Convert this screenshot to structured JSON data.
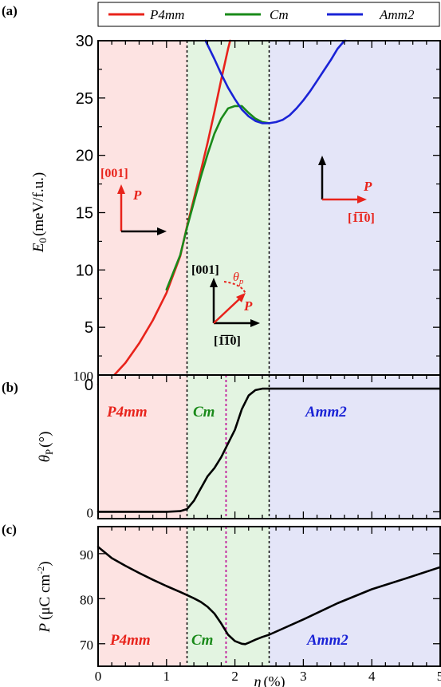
{
  "chart_data": [
    {
      "panel": "(a)",
      "type": "line",
      "ylabel_sym": "E",
      "ylabel_sub": "0",
      "ylabel_unit": "(meV/f.u.)",
      "xlim": [
        0,
        5
      ],
      "ylim": [
        0,
        30
      ],
      "yticks": [
        "0",
        "5",
        "10",
        "15",
        "20",
        "25",
        "30"
      ],
      "boundaries": [
        1.3,
        2.5
      ],
      "legend_placement": "top",
      "series": [
        {
          "name": "P4mm",
          "color": "#e8231b",
          "x": [
            0,
            0.2,
            0.4,
            0.6,
            0.8,
            1.0,
            1.2,
            1.3,
            1.4,
            1.5,
            1.6,
            1.7,
            1.8,
            1.9,
            1.93
          ],
          "y": [
            0,
            0.6,
            1.9,
            3.6,
            5.6,
            8.0,
            11.2,
            13.8,
            16.2,
            18.6,
            21.1,
            23.8,
            26.6,
            29.3,
            30
          ]
        },
        {
          "name": "Cm",
          "color": "#1a8a1a",
          "x": [
            1.0,
            1.2,
            1.3,
            1.4,
            1.5,
            1.6,
            1.7,
            1.8,
            1.9,
            2.0,
            2.1,
            2.2,
            2.3,
            2.4,
            2.5
          ],
          "y": [
            8.3,
            11.3,
            13.7,
            15.9,
            18.1,
            20.1,
            21.9,
            23.2,
            24.1,
            24.3,
            24.3,
            23.7,
            23.2,
            22.9,
            22.8
          ]
        },
        {
          "name": "Amm2",
          "color": "#1a23d6",
          "x": [
            1.57,
            1.7,
            1.8,
            1.9,
            2.0,
            2.1,
            2.2,
            2.3,
            2.4,
            2.5,
            2.6,
            2.7,
            2.8,
            2.9,
            3.0,
            3.1,
            3.2,
            3.3,
            3.4,
            3.5,
            3.6,
            3.62
          ],
          "y": [
            30.0,
            28.4,
            27.1,
            25.9,
            24.9,
            24.0,
            23.4,
            23.0,
            22.8,
            22.8,
            22.9,
            23.1,
            23.5,
            24.1,
            24.8,
            25.6,
            26.5,
            27.4,
            28.3,
            29.3,
            30.0,
            30.0
          ]
        }
      ],
      "annotations": {
        "left_dir": "[001]",
        "left_vec": "P",
        "mid_dir_up": "[001]",
        "mid_dir_right": "[1̅1̅0]",
        "mid_theta": "θ",
        "mid_theta_sub": "p",
        "mid_vec": "P",
        "right_vec": "P",
        "right_dir": "[1̅1̅0]"
      }
    },
    {
      "panel": "(b)",
      "type": "line",
      "ylabel_sym": "θ",
      "ylabel_sub": "P",
      "ylabel_unit": "(°)",
      "xlim": [
        0,
        5
      ],
      "ylim": [
        -5,
        100
      ],
      "yticks": [
        "0",
        "100"
      ],
      "boundaries": [
        1.3,
        2.5
      ],
      "marker_line": 1.87,
      "phase_labels": [
        "P4mm",
        "Cm",
        "Amm2"
      ],
      "series": [
        {
          "name": "",
          "color": "#000000",
          "x": [
            0,
            1.0,
            1.2,
            1.3,
            1.4,
            1.5,
            1.6,
            1.7,
            1.8,
            1.9,
            2.0,
            2.1,
            2.2,
            2.3,
            2.4,
            2.5,
            3.0,
            5.0
          ],
          "y": [
            0,
            0,
            0.5,
            2,
            8,
            17,
            26,
            32,
            40,
            50,
            60,
            75,
            85,
            89,
            90,
            90,
            90,
            90
          ]
        }
      ]
    },
    {
      "panel": "(c)",
      "type": "line",
      "ylabel_sym": "P",
      "ylabel_unit": "(μC cm",
      "ylabel_sup": "-2",
      "ylabel_close": ")",
      "xlabel_sym": "η",
      "xlabel_unit": "(%)",
      "xlim": [
        0,
        5
      ],
      "ylim": [
        65,
        96
      ],
      "yticks": [
        "70",
        "80",
        "90"
      ],
      "xticks": [
        "0",
        "1",
        "2",
        "3",
        "4",
        "5"
      ],
      "boundaries": [
        1.3,
        2.5
      ],
      "marker_line": 1.87,
      "phase_labels": [
        "P4mm",
        "Cm",
        "Amm2"
      ],
      "series": [
        {
          "name": "",
          "color": "#000000",
          "x": [
            0,
            0.2,
            0.4,
            0.6,
            0.8,
            1.0,
            1.2,
            1.3,
            1.4,
            1.5,
            1.6,
            1.7,
            1.8,
            1.9,
            2.0,
            2.1,
            2.15,
            2.2,
            2.3,
            2.4,
            2.5,
            3.0,
            3.5,
            4.0,
            4.5,
            5.0
          ],
          "y": [
            91.5,
            89.0,
            87.3,
            85.7,
            84.2,
            82.8,
            81.5,
            80.8,
            80.1,
            79.3,
            78.2,
            76.7,
            74.5,
            72.0,
            70.6,
            70.0,
            69.9,
            70.2,
            70.9,
            71.5,
            72.0,
            75.4,
            79.0,
            82.1,
            84.5,
            87.0
          ]
        }
      ]
    }
  ]
}
